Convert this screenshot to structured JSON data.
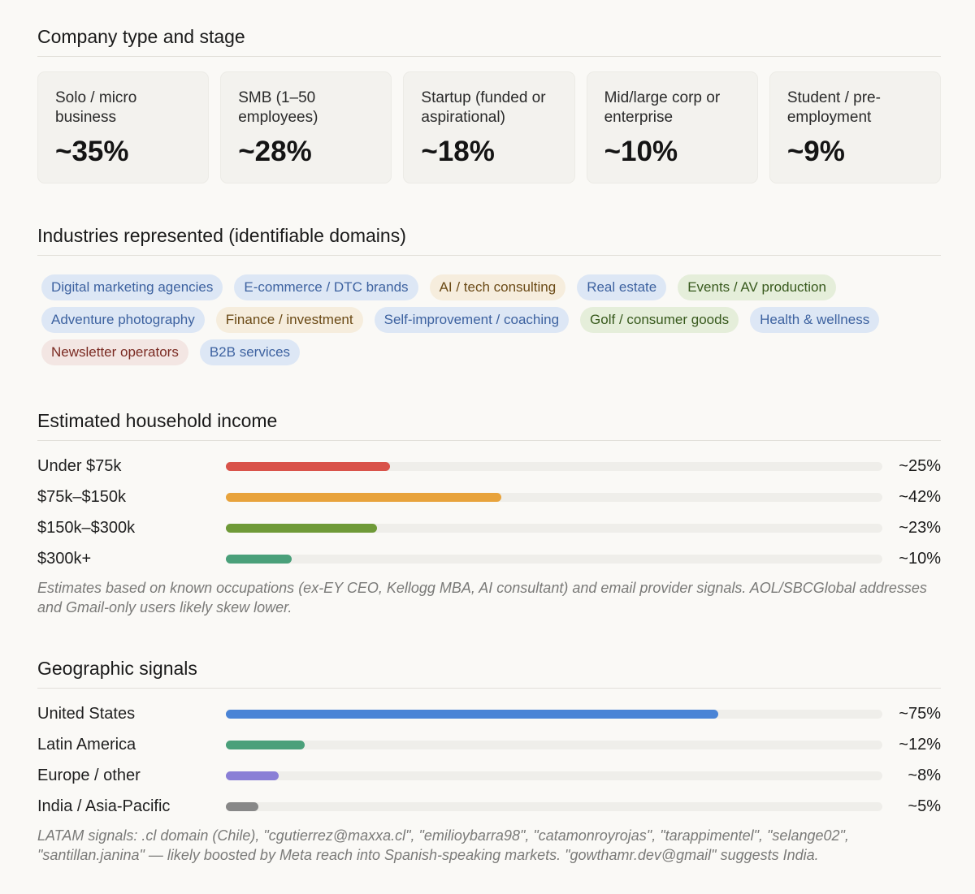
{
  "company": {
    "title": "Company type and stage",
    "cards": [
      {
        "label": "Solo / micro business",
        "value": "~35%"
      },
      {
        "label": "SMB (1–50 employees)",
        "value": "~28%"
      },
      {
        "label": "Startup (funded or aspirational)",
        "value": "~18%"
      },
      {
        "label": "Mid/large corp or enterprise",
        "value": "~10%"
      },
      {
        "label": "Student / pre-employment",
        "value": "~9%"
      }
    ]
  },
  "industries": {
    "title": "Industries represented (identifiable domains)",
    "tags": [
      {
        "label": "Digital marketing agencies",
        "color": "#dde7f5"
      },
      {
        "label": "E-commerce / DTC brands",
        "color": "#dde7f5"
      },
      {
        "label": "AI / tech consulting",
        "color": "#f6eddd"
      },
      {
        "label": "Real estate",
        "color": "#dde7f5"
      },
      {
        "label": "Events / AV production",
        "color": "#e5eeda"
      },
      {
        "label": "Adventure photography",
        "color": "#dde7f5"
      },
      {
        "label": "Finance / investment",
        "color": "#f6eddd"
      },
      {
        "label": "Self-improvement / coaching",
        "color": "#dde7f5"
      },
      {
        "label": "Golf / consumer goods",
        "color": "#e5eeda"
      },
      {
        "label": "Health & wellness",
        "color": "#dde7f5"
      },
      {
        "label": "Newsletter operators",
        "color": "#f3e6e3"
      },
      {
        "label": "B2B services",
        "color": "#dde7f5"
      }
    ]
  },
  "income": {
    "title": "Estimated household income",
    "rows": [
      {
        "label": "Under $75k",
        "value": "~25%",
        "percent": 25,
        "color": "#d9534a"
      },
      {
        "label": "$75k–$150k",
        "value": "~42%",
        "percent": 42,
        "color": "#e8a33c"
      },
      {
        "label": "$150k–$300k",
        "value": "~23%",
        "percent": 23,
        "color": "#6f9a38"
      },
      {
        "label": "$300k+",
        "value": "~10%",
        "percent": 10,
        "color": "#4aa07a"
      }
    ],
    "note": "Estimates based on known occupations (ex-EY CEO, Kellogg MBA, AI consultant) and email provider signals. AOL/SBCGlobal addresses and Gmail-only users likely skew lower."
  },
  "geo": {
    "title": "Geographic signals",
    "rows": [
      {
        "label": "United States",
        "value": "~75%",
        "percent": 75,
        "color": "#4a84d6"
      },
      {
        "label": "Latin America",
        "value": "~12%",
        "percent": 12,
        "color": "#4aa07a"
      },
      {
        "label": "Europe / other",
        "value": "~8%",
        "percent": 8,
        "color": "#8a7fd6"
      },
      {
        "label": "India / Asia-Pacific",
        "value": "~5%",
        "percent": 5,
        "color": "#888888"
      }
    ],
    "note": "LATAM signals: .cl domain (Chile), \"cgutierrez@maxxa.cl\", \"emilioybarra98\", \"catamonroyrojas\", \"tarappimentel\", \"selange02\", \"santillan.janina\" — likely boosted by Meta reach into Spanish-speaking markets. \"gowthamr.dev@gmail\" suggests India."
  }
}
